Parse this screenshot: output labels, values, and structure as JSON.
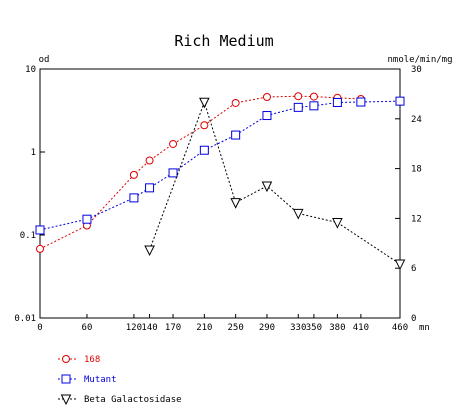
{
  "chart_data": {
    "type": "line",
    "title": "Rich Medium",
    "y_left_label": "od",
    "y_right_label": "nmole/min/mg",
    "x_unit": "mn",
    "x_ticks": [
      0,
      60,
      120,
      140,
      170,
      210,
      250,
      290,
      330,
      350,
      380,
      410,
      460
    ],
    "x_tick_labels": [
      "0",
      "60",
      "120",
      "140",
      "170",
      "210",
      "250",
      "290",
      "330",
      "350",
      "380",
      "410",
      "460"
    ],
    "xlim": [
      0,
      460
    ],
    "y_left_scale": "log",
    "y_left_lim": [
      0.01,
      10
    ],
    "y_left_ticks": [
      0.01,
      0.1,
      1,
      10
    ],
    "y_left_tick_labels": [
      "0.01",
      "0.1",
      "1",
      "10"
    ],
    "y_right_lim": [
      0,
      30
    ],
    "y_right_ticks": [
      0,
      6,
      12,
      18,
      24,
      30
    ],
    "y_right_tick_labels": [
      "0",
      "6",
      "12",
      "18",
      "24",
      "30"
    ],
    "grid": false,
    "legend_position": "bottom-left",
    "series": [
      {
        "name": "168",
        "axis": "left",
        "color": "#e00000",
        "marker": "circle",
        "x": [
          0,
          60,
          120,
          140,
          170,
          210,
          250,
          290,
          330,
          350,
          380,
          410
        ],
        "y": [
          0.068,
          0.13,
          0.53,
          0.79,
          1.25,
          2.1,
          3.9,
          4.6,
          4.7,
          4.65,
          4.5,
          4.35
        ]
      },
      {
        "name": "Mutant",
        "axis": "left",
        "color": "#0000e0",
        "marker": "square",
        "x": [
          0,
          60,
          120,
          140,
          170,
          210,
          250,
          290,
          330,
          350,
          380,
          410,
          460
        ],
        "y": [
          0.115,
          0.155,
          0.28,
          0.37,
          0.56,
          1.05,
          1.6,
          2.75,
          3.45,
          3.6,
          3.95,
          4.0,
          4.1
        ]
      },
      {
        "name": "Beta Galactosidase",
        "axis": "right",
        "color": "#000000",
        "marker": "triangle-down",
        "x": [
          140,
          210,
          250,
          290,
          330,
          380,
          460
        ],
        "y": [
          8.2,
          26.0,
          13.9,
          15.9,
          12.6,
          11.5,
          6.5
        ]
      }
    ]
  }
}
